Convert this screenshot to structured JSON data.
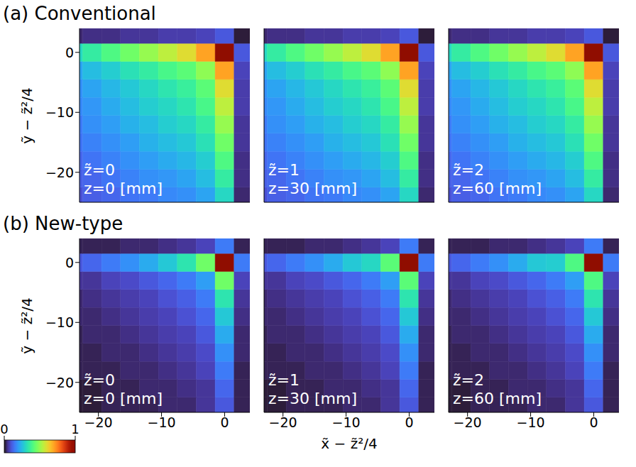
{
  "chart_data": [
    {
      "type": "heatmap",
      "title": "(a) Conventional",
      "y_label": "ỹ − z̃²/4",
      "annotations": [
        "z̃=0",
        "z=0 [mm]"
      ],
      "xlim": [
        -23,
        4
      ],
      "ylim": [
        -25,
        4
      ],
      "xticks": [
        {
          "value": -20,
          "label": "−20"
        },
        {
          "value": -10,
          "label": "−10"
        },
        0
      ],
      "yticks": [
        {
          "value": -20,
          "label": "−20"
        },
        {
          "value": -10,
          "label": "−10"
        },
        0
      ],
      "tick_labels": "y",
      "cells": {
        "x": [
          -24,
          -21,
          -18,
          -15,
          -12,
          -9,
          -6,
          -3,
          0,
          3
        ],
        "y": [
          -24,
          -21,
          -18,
          -15,
          -12,
          -9,
          -6,
          -3,
          0,
          3
        ],
        "values": [
          [
            0.09,
            0.11,
            0.12,
            0.14,
            0.15,
            0.17,
            0.18,
            0.21,
            0.3,
            0.03
          ],
          [
            0.11,
            0.12,
            0.14,
            0.16,
            0.18,
            0.19,
            0.21,
            0.25,
            0.35,
            0.04
          ],
          [
            0.12,
            0.14,
            0.16,
            0.18,
            0.2,
            0.22,
            0.24,
            0.28,
            0.4,
            0.04
          ],
          [
            0.14,
            0.16,
            0.18,
            0.2,
            0.23,
            0.25,
            0.27,
            0.32,
            0.45,
            0.05
          ],
          [
            0.15,
            0.18,
            0.2,
            0.23,
            0.25,
            0.28,
            0.3,
            0.35,
            0.5,
            0.05
          ],
          [
            0.17,
            0.19,
            0.22,
            0.25,
            0.28,
            0.3,
            0.33,
            0.39,
            0.55,
            0.06
          ],
          [
            0.18,
            0.21,
            0.24,
            0.27,
            0.3,
            0.33,
            0.36,
            0.42,
            0.6,
            0.06
          ],
          [
            0.21,
            0.25,
            0.28,
            0.32,
            0.35,
            0.39,
            0.42,
            0.49,
            0.7,
            0.07
          ],
          [
            0.3,
            0.35,
            0.4,
            0.45,
            0.5,
            0.55,
            0.6,
            0.7,
            1.0,
            0.1
          ],
          [
            0.03,
            0.04,
            0.04,
            0.05,
            0.05,
            0.06,
            0.06,
            0.07,
            0.1,
            0.01
          ]
        ]
      }
    },
    {
      "type": "heatmap",
      "annotations": [
        "z̃=1",
        "z=30 [mm]"
      ],
      "xlim": [
        -23,
        4
      ],
      "ylim": [
        -25,
        4
      ],
      "xticks": [
        {
          "value": -20,
          "label": "−20"
        },
        {
          "value": -10,
          "label": "−10"
        },
        0
      ],
      "yticks": [
        {
          "value": -20,
          "label": "−20"
        },
        {
          "value": -10,
          "label": "−10"
        },
        0
      ],
      "tick_labels": false,
      "cells": {
        "x": [
          -24,
          -21,
          -18,
          -15,
          -12,
          -9,
          -6,
          -3,
          0,
          3
        ],
        "y": [
          -24,
          -21,
          -18,
          -15,
          -12,
          -9,
          -6,
          -3,
          0,
          3
        ],
        "values": [
          [
            0.09,
            0.11,
            0.12,
            0.14,
            0.15,
            0.17,
            0.18,
            0.21,
            0.3,
            0.03
          ],
          [
            0.11,
            0.12,
            0.14,
            0.16,
            0.18,
            0.19,
            0.21,
            0.25,
            0.35,
            0.04
          ],
          [
            0.12,
            0.14,
            0.16,
            0.18,
            0.2,
            0.22,
            0.24,
            0.28,
            0.4,
            0.04
          ],
          [
            0.14,
            0.16,
            0.18,
            0.2,
            0.23,
            0.25,
            0.27,
            0.32,
            0.45,
            0.05
          ],
          [
            0.15,
            0.18,
            0.2,
            0.23,
            0.25,
            0.28,
            0.3,
            0.35,
            0.5,
            0.05
          ],
          [
            0.17,
            0.19,
            0.22,
            0.25,
            0.28,
            0.3,
            0.33,
            0.39,
            0.55,
            0.06
          ],
          [
            0.18,
            0.21,
            0.24,
            0.27,
            0.3,
            0.33,
            0.36,
            0.42,
            0.6,
            0.06
          ],
          [
            0.21,
            0.25,
            0.28,
            0.32,
            0.35,
            0.39,
            0.42,
            0.49,
            0.7,
            0.07
          ],
          [
            0.3,
            0.35,
            0.4,
            0.45,
            0.5,
            0.55,
            0.6,
            0.7,
            1.0,
            0.1
          ],
          [
            0.03,
            0.04,
            0.04,
            0.05,
            0.05,
            0.06,
            0.06,
            0.07,
            0.1,
            0.01
          ]
        ]
      }
    },
    {
      "type": "heatmap",
      "annotations": [
        "z̃=2",
        "z=60 [mm]"
      ],
      "xlim": [
        -23,
        4
      ],
      "ylim": [
        -25,
        4
      ],
      "xticks": [
        {
          "value": -20,
          "label": "−20"
        },
        {
          "value": -10,
          "label": "−10"
        },
        0
      ],
      "yticks": [
        {
          "value": -20,
          "label": "−20"
        },
        {
          "value": -10,
          "label": "−10"
        },
        0
      ],
      "tick_labels": false,
      "cells": {
        "x": [
          -24,
          -21,
          -18,
          -15,
          -12,
          -9,
          -6,
          -3,
          0,
          3
        ],
        "y": [
          -24,
          -21,
          -18,
          -15,
          -12,
          -9,
          -6,
          -3,
          0,
          3
        ],
        "values": [
          [
            0.09,
            0.11,
            0.12,
            0.14,
            0.15,
            0.17,
            0.18,
            0.21,
            0.3,
            0.03
          ],
          [
            0.11,
            0.12,
            0.14,
            0.16,
            0.18,
            0.19,
            0.21,
            0.25,
            0.35,
            0.04
          ],
          [
            0.12,
            0.14,
            0.16,
            0.18,
            0.2,
            0.22,
            0.24,
            0.28,
            0.4,
            0.04
          ],
          [
            0.14,
            0.16,
            0.18,
            0.2,
            0.23,
            0.25,
            0.27,
            0.32,
            0.45,
            0.05
          ],
          [
            0.15,
            0.18,
            0.2,
            0.23,
            0.25,
            0.28,
            0.3,
            0.35,
            0.5,
            0.05
          ],
          [
            0.17,
            0.19,
            0.22,
            0.25,
            0.28,
            0.3,
            0.33,
            0.39,
            0.55,
            0.06
          ],
          [
            0.18,
            0.21,
            0.24,
            0.27,
            0.3,
            0.33,
            0.36,
            0.42,
            0.6,
            0.06
          ],
          [
            0.21,
            0.25,
            0.28,
            0.32,
            0.35,
            0.39,
            0.42,
            0.49,
            0.7,
            0.07
          ],
          [
            0.3,
            0.35,
            0.4,
            0.45,
            0.5,
            0.55,
            0.6,
            0.7,
            1.0,
            0.1
          ],
          [
            0.03,
            0.04,
            0.04,
            0.05,
            0.05,
            0.06,
            0.06,
            0.07,
            0.1,
            0.01
          ]
        ]
      }
    },
    {
      "type": "heatmap",
      "title": "(b) New-type",
      "y_label": "ỹ − z̃²/4",
      "annotations": [
        "z̃=0",
        "z=0 [mm]"
      ],
      "xlim": [
        -23,
        4
      ],
      "ylim": [
        -25,
        4
      ],
      "xticks": [
        {
          "value": -20,
          "label": "−20"
        },
        {
          "value": -10,
          "label": "−10"
        },
        0
      ],
      "yticks": [
        {
          "value": -20,
          "label": "−20"
        },
        {
          "value": -10,
          "label": "−10"
        },
        0
      ],
      "colorbar": {
        "range": [
          0,
          1
        ],
        "ticks": [
          0,
          1
        ]
      },
      "cells": {
        "x": [
          -24,
          -21,
          -18,
          -15,
          -12,
          -9,
          -6,
          -3,
          0,
          3
        ],
        "y": [
          -24,
          -21,
          -18,
          -15,
          -12,
          -9,
          -6,
          -3,
          0,
          3
        ],
        "values": [
          [
            0.01,
            0.01,
            0.02,
            0.02,
            0.02,
            0.03,
            0.03,
            0.05,
            0.1,
            0.02
          ],
          [
            0.01,
            0.01,
            0.02,
            0.02,
            0.03,
            0.03,
            0.04,
            0.05,
            0.12,
            0.02
          ],
          [
            0.02,
            0.02,
            0.02,
            0.03,
            0.03,
            0.04,
            0.05,
            0.07,
            0.15,
            0.02
          ],
          [
            0.02,
            0.02,
            0.03,
            0.03,
            0.04,
            0.05,
            0.06,
            0.08,
            0.18,
            0.03
          ],
          [
            0.02,
            0.03,
            0.03,
            0.04,
            0.05,
            0.06,
            0.07,
            0.1,
            0.22,
            0.03
          ],
          [
            0.03,
            0.03,
            0.04,
            0.05,
            0.06,
            0.07,
            0.09,
            0.12,
            0.27,
            0.04
          ],
          [
            0.03,
            0.04,
            0.05,
            0.06,
            0.07,
            0.09,
            0.11,
            0.15,
            0.33,
            0.05
          ],
          [
            0.05,
            0.05,
            0.07,
            0.08,
            0.1,
            0.12,
            0.15,
            0.2,
            0.45,
            0.07
          ],
          [
            0.1,
            0.12,
            0.15,
            0.18,
            0.22,
            0.27,
            0.33,
            0.45,
            1.0,
            0.15
          ],
          [
            0.02,
            0.02,
            0.02,
            0.03,
            0.03,
            0.04,
            0.05,
            0.07,
            0.15,
            0.02
          ]
        ]
      }
    },
    {
      "type": "heatmap",
      "x_label": "x̃ − z̃²/4",
      "annotations": [
        "z̃=1",
        "z=30 [mm]"
      ],
      "xlim": [
        -23,
        4
      ],
      "ylim": [
        -25,
        4
      ],
      "xticks": [
        {
          "value": -20,
          "label": "−20"
        },
        {
          "value": -10,
          "label": "−10"
        },
        0
      ],
      "yticks": [
        {
          "value": -20,
          "label": "−20"
        },
        {
          "value": -10,
          "label": "−10"
        },
        0
      ],
      "tick_labels": "x",
      "cells": {
        "x": [
          -24,
          -21,
          -18,
          -15,
          -12,
          -9,
          -6,
          -3,
          0,
          3
        ],
        "y": [
          -24,
          -21,
          -18,
          -15,
          -12,
          -9,
          -6,
          -3,
          0,
          3
        ],
        "values": [
          [
            0.01,
            0.01,
            0.02,
            0.02,
            0.02,
            0.03,
            0.03,
            0.05,
            0.1,
            0.02
          ],
          [
            0.01,
            0.01,
            0.02,
            0.02,
            0.03,
            0.03,
            0.04,
            0.05,
            0.12,
            0.02
          ],
          [
            0.02,
            0.02,
            0.02,
            0.03,
            0.03,
            0.04,
            0.05,
            0.07,
            0.15,
            0.02
          ],
          [
            0.02,
            0.02,
            0.03,
            0.03,
            0.04,
            0.05,
            0.06,
            0.08,
            0.18,
            0.03
          ],
          [
            0.02,
            0.03,
            0.03,
            0.04,
            0.05,
            0.06,
            0.07,
            0.1,
            0.22,
            0.03
          ],
          [
            0.03,
            0.03,
            0.04,
            0.05,
            0.06,
            0.07,
            0.09,
            0.12,
            0.27,
            0.04
          ],
          [
            0.03,
            0.04,
            0.05,
            0.06,
            0.07,
            0.09,
            0.11,
            0.15,
            0.33,
            0.05
          ],
          [
            0.05,
            0.05,
            0.07,
            0.08,
            0.1,
            0.12,
            0.15,
            0.2,
            0.42,
            0.07
          ],
          [
            0.1,
            0.12,
            0.15,
            0.18,
            0.22,
            0.27,
            0.3,
            0.42,
            1.0,
            0.15
          ],
          [
            0.02,
            0.02,
            0.02,
            0.03,
            0.03,
            0.04,
            0.05,
            0.07,
            0.15,
            0.02
          ]
        ]
      }
    },
    {
      "type": "heatmap",
      "annotations": [
        "z̃=2",
        "z=60 [mm]"
      ],
      "xlim": [
        -23,
        4
      ],
      "ylim": [
        -25,
        4
      ],
      "xticks": [
        {
          "value": -20,
          "label": "−20"
        },
        {
          "value": -10,
          "label": "−10"
        },
        0
      ],
      "yticks": [
        {
          "value": -20,
          "label": "−20"
        },
        {
          "value": -10,
          "label": "−10"
        },
        0
      ],
      "tick_labels": "x",
      "cells": {
        "x": [
          -24,
          -21,
          -18,
          -15,
          -12,
          -9,
          -6,
          -3,
          0,
          3
        ],
        "y": [
          -24,
          -21,
          -18,
          -15,
          -12,
          -9,
          -6,
          -3,
          0,
          3
        ],
        "values": [
          [
            0.01,
            0.01,
            0.02,
            0.02,
            0.02,
            0.03,
            0.03,
            0.05,
            0.1,
            0.02
          ],
          [
            0.01,
            0.01,
            0.02,
            0.02,
            0.03,
            0.03,
            0.04,
            0.05,
            0.12,
            0.02
          ],
          [
            0.02,
            0.02,
            0.02,
            0.03,
            0.03,
            0.04,
            0.05,
            0.07,
            0.15,
            0.02
          ],
          [
            0.02,
            0.02,
            0.03,
            0.03,
            0.04,
            0.05,
            0.06,
            0.08,
            0.18,
            0.03
          ],
          [
            0.02,
            0.03,
            0.03,
            0.04,
            0.05,
            0.06,
            0.07,
            0.1,
            0.22,
            0.03
          ],
          [
            0.03,
            0.03,
            0.04,
            0.05,
            0.06,
            0.07,
            0.09,
            0.12,
            0.27,
            0.04
          ],
          [
            0.03,
            0.04,
            0.05,
            0.06,
            0.07,
            0.09,
            0.11,
            0.15,
            0.33,
            0.05
          ],
          [
            0.05,
            0.05,
            0.07,
            0.08,
            0.1,
            0.12,
            0.15,
            0.2,
            0.4,
            0.07
          ],
          [
            0.1,
            0.12,
            0.15,
            0.18,
            0.22,
            0.27,
            0.28,
            0.4,
            1.0,
            0.15
          ],
          [
            0.02,
            0.02,
            0.02,
            0.03,
            0.03,
            0.04,
            0.05,
            0.07,
            0.15,
            0.02
          ]
        ]
      }
    }
  ]
}
